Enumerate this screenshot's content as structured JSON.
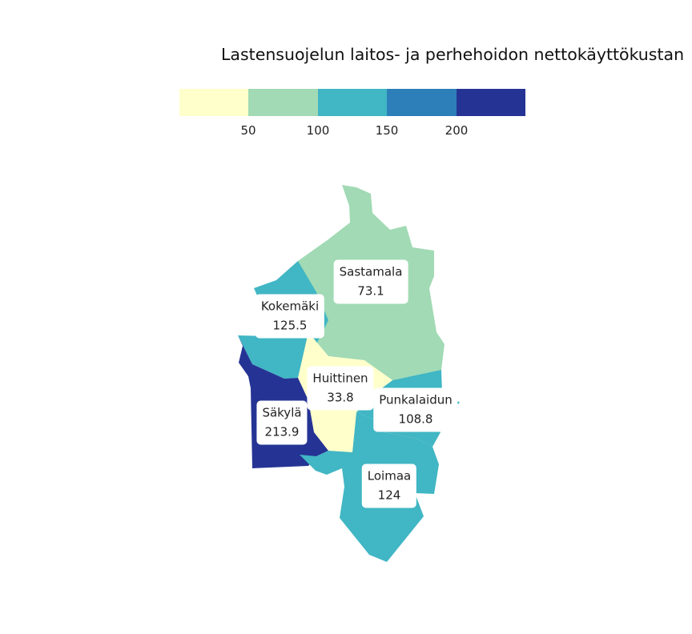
{
  "title": "Lastensuojelun laitos- ja perhehoidon nettokäyttökustan",
  "legend": {
    "colors": [
      "#ffffcc",
      "#a1dab4",
      "#41b6c4",
      "#2c7fb8",
      "#253494"
    ],
    "ticks": [
      "50",
      "100",
      "150",
      "200"
    ]
  },
  "regions": [
    {
      "name": "Sastamala",
      "value": "73.1",
      "color": "#a1dab4"
    },
    {
      "name": "Kokemäki",
      "value": "125.5",
      "color": "#41b6c4"
    },
    {
      "name": "Huittinen",
      "value": "33.8",
      "color": "#ffffcc"
    },
    {
      "name": "Punkalaidun",
      "value": "108.8",
      "color": "#41b6c4"
    },
    {
      "name": "Säkylä",
      "value": "213.9",
      "color": "#253494"
    },
    {
      "name": "Loimaa",
      "value": "124",
      "color": "#41b6c4"
    }
  ]
}
